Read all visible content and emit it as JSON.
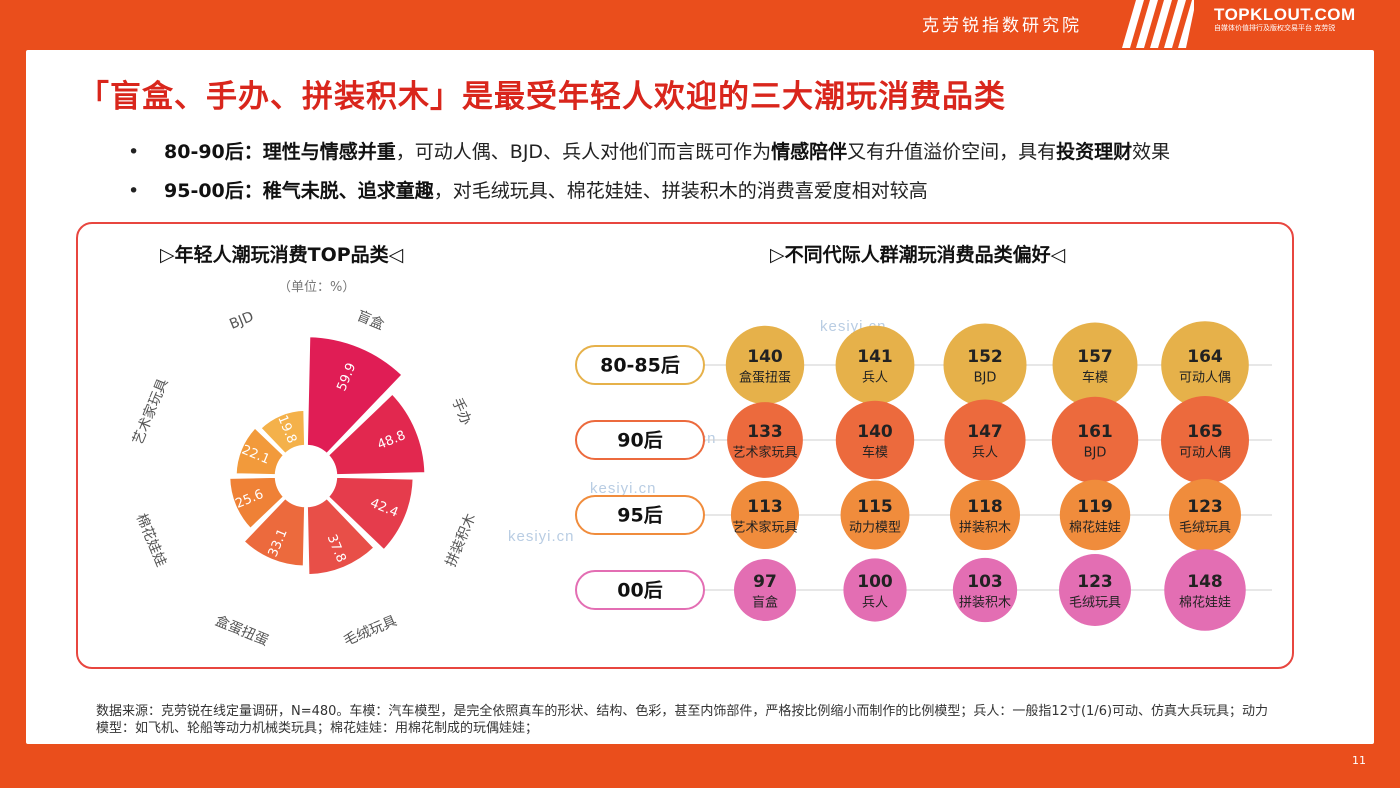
{
  "header": {
    "brand_cn": "克劳锐指数研究院",
    "logo_main": "TOPKLOUT.COM",
    "logo_sub": "自媒体价值排行及版权交易平台  克劳锐"
  },
  "title": "「盲盒、手办、拼装积木」是最受年轻人欢迎的三大潮玩消费品类",
  "bullets": [
    {
      "dot": "•",
      "label": "80-90后：",
      "bold1": "理性与情感并重",
      "text1": "，可动人偶、BJD、兵人对他们而言既可作为",
      "bold2": "情感陪伴",
      "text2": "又有升值溢价空间，具有",
      "bold3": "投资理财",
      "text3": "效果"
    },
    {
      "dot": "•",
      "label": "95-00后：",
      "bold1": "稚气未脱、追求童趣",
      "text1": "，对毛绒玩具、棉花娃娃、拼装积木的消费喜爱度相对较高",
      "bold2": "",
      "text2": "",
      "bold3": "",
      "text3": ""
    }
  ],
  "left_panel": {
    "title": "▷年轻人潮玩消费TOP品类◁",
    "unit": "（单位：%）"
  },
  "right_panel": {
    "title": "▷不同代际人群潮玩消费品类偏好◁"
  },
  "watermark": "kesiyi.cn",
  "colors": {
    "background": "#ea4e1c",
    "title": "#d9261c",
    "gen_80_85": "#e6b14a",
    "gen_90": "#ec6a3d",
    "gen_95": "#f08c3c",
    "gen_00": "#e36eb3"
  },
  "chart_data": [
    {
      "type": "pie",
      "subtype": "nightingale-rose",
      "title": "▷年轻人潮玩消费TOP品类◁",
      "unit": "（单位：%）",
      "categories": [
        "盲盒",
        "手办",
        "拼装积木",
        "毛绒玩具",
        "盒蛋扭蛋",
        "棉花娃娃",
        "艺术家玩具",
        "BJD"
      ],
      "values": [
        59.9,
        48.8,
        42.4,
        37.8,
        33.1,
        25.6,
        22.1,
        19.8
      ],
      "colors": [
        "#e01d55",
        "#e2284f",
        "#e53c4c",
        "#e84f48",
        "#ec6a3d",
        "#ef8136",
        "#f29a3b",
        "#f4b14a"
      ]
    },
    {
      "type": "table",
      "subtype": "bubble-grid",
      "title": "▷不同代际人群潮玩消费品类偏好◁",
      "rows": [
        {
          "label": "80-85后",
          "items": [
            {
              "value": 140,
              "category": "盒蛋扭蛋"
            },
            {
              "value": 141,
              "category": "兵人"
            },
            {
              "value": 152,
              "category": "BJD"
            },
            {
              "value": 157,
              "category": "车模"
            },
            {
              "value": 164,
              "category": "可动人偶"
            }
          ]
        },
        {
          "label": "90后",
          "items": [
            {
              "value": 133,
              "category": "艺术家玩具"
            },
            {
              "value": 140,
              "category": "车模"
            },
            {
              "value": 147,
              "category": "兵人"
            },
            {
              "value": 161,
              "category": "BJD"
            },
            {
              "value": 165,
              "category": "可动人偶"
            }
          ]
        },
        {
          "label": "95后",
          "items": [
            {
              "value": 113,
              "category": "艺术家玩具"
            },
            {
              "value": 115,
              "category": "动力模型"
            },
            {
              "value": 118,
              "category": "拼装积木"
            },
            {
              "value": 119,
              "category": "棉花娃娃"
            },
            {
              "value": 123,
              "category": "毛绒玩具"
            }
          ]
        },
        {
          "label": "00后",
          "items": [
            {
              "value": 97,
              "category": "盲盒"
            },
            {
              "value": 100,
              "category": "兵人"
            },
            {
              "value": 103,
              "category": "拼装积木"
            },
            {
              "value": 123,
              "category": "毛绒玩具"
            },
            {
              "value": 148,
              "category": "棉花娃娃"
            }
          ]
        }
      ]
    }
  ],
  "footnote": "数据来源：克劳锐在线定量调研，N=480。车模：汽车模型，是完全依照真车的形状、结构、色彩，甚至内饰部件，严格按比例缩小而制作的比例模型；兵人：一般指12寸(1/6)可动、仿真大兵玩具；动力模型：如飞机、轮船等动力机械类玩具；棉花娃娃：用棉花制成的玩偶娃娃；",
  "page_number": "11"
}
